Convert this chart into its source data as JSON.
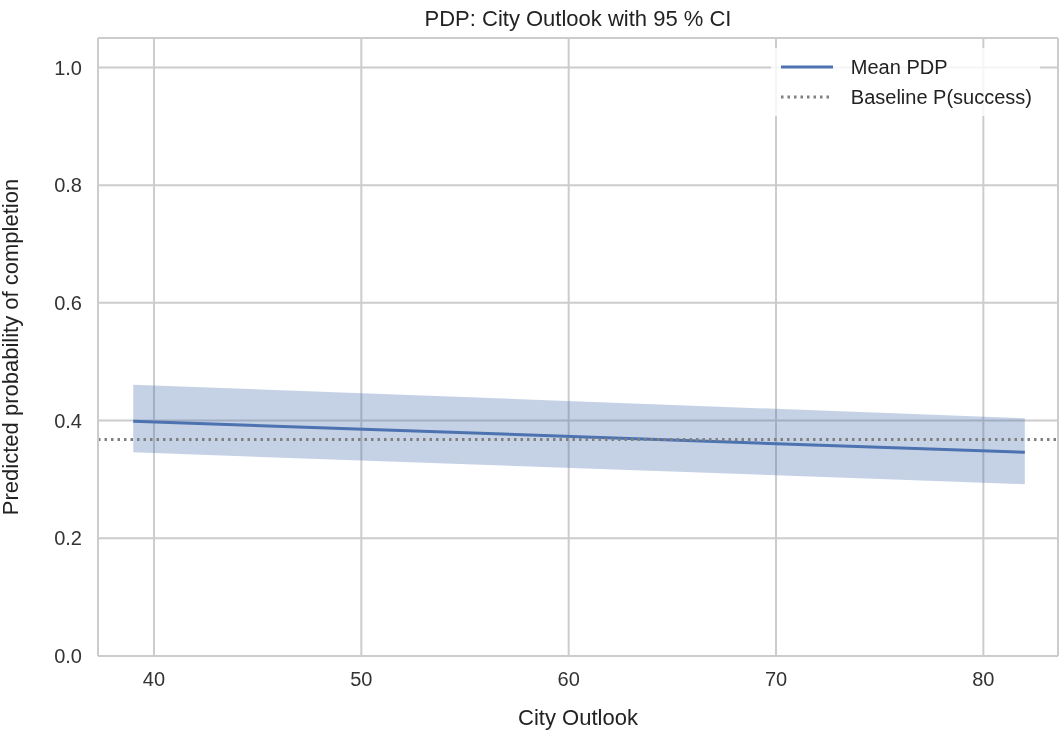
{
  "chart_data": {
    "type": "line",
    "title": "PDP: City Outlook with 95 % CI",
    "xlabel": "City Outlook",
    "ylabel": "Predicted probability of completion",
    "x": [
      39,
      82
    ],
    "series": [
      {
        "name": "Mean PDP",
        "color": "#4c72b0",
        "values": [
          0.399,
          0.346
        ],
        "lower": [
          0.346,
          0.292
        ],
        "upper": [
          0.461,
          0.404
        ]
      }
    ],
    "ref_lines": [
      {
        "axis": "y",
        "value": 0.368,
        "label": "Baseline P(success)",
        "color": "#808080",
        "line_style": "dotted"
      }
    ],
    "xlim": [
      37.3,
      83.6
    ],
    "xticks": [
      40,
      50,
      60,
      70,
      80
    ],
    "ylim": [
      0,
      1.05
    ],
    "yticks": [
      {
        "value": 0,
        "label": "0.0"
      },
      0.2,
      0.4,
      0.6,
      0.8,
      {
        "value": 1,
        "label": "1.0"
      }
    ],
    "grid": true,
    "legend": "top right"
  }
}
